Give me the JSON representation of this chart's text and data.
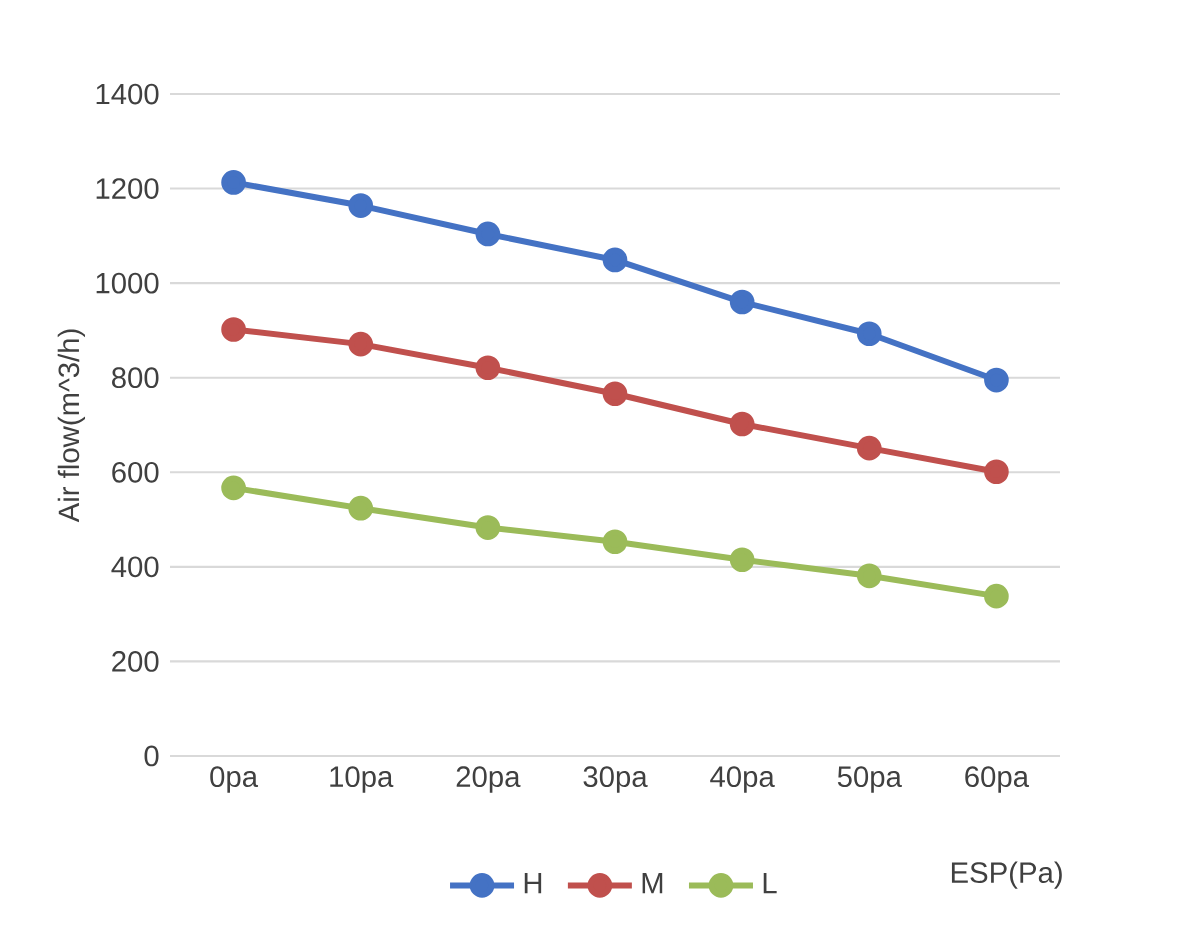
{
  "chart_data": {
    "type": "line",
    "xlabel": "ESP(Pa)",
    "ylabel": "Air flow(m^3/h)",
    "categories": [
      "0pa",
      "10pa",
      "20pa",
      "30pa",
      "40pa",
      "50pa",
      "60pa"
    ],
    "series": [
      {
        "name": "H",
        "color": "#4472c4",
        "values": [
          1213,
          1164,
          1104,
          1049,
          960,
          893,
          795
        ]
      },
      {
        "name": "M",
        "color": "#c0504d",
        "values": [
          902,
          871,
          821,
          766,
          702,
          651,
          601
        ]
      },
      {
        "name": "L",
        "color": "#9bbb59",
        "values": [
          567,
          524,
          483,
          453,
          415,
          381,
          338
        ]
      }
    ],
    "ylim": [
      0,
      1400
    ],
    "yticks": [
      0,
      200,
      400,
      600,
      800,
      1000,
      1200,
      1400
    ],
    "grid": "y",
    "legend": "bottom",
    "marker": "circle",
    "line_style": "solid"
  }
}
